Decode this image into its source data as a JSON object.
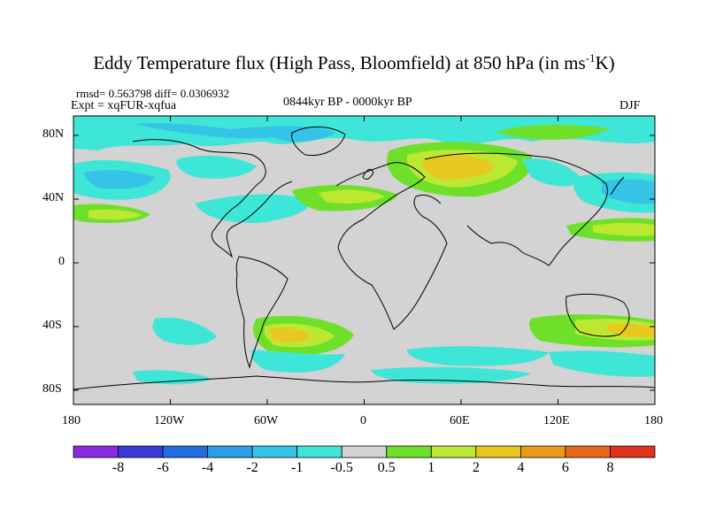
{
  "title": {
    "main": "Eddy Temperature flux (High Pass, Bloomfield) at 850 hPa (in ms",
    "sup": "-1",
    "end": "K)"
  },
  "stats": "rmsd= 0.563798 diff= 0.0306932",
  "expt": "Expt = xqFUR-xqfua",
  "period": "0844kyr BP - 0000kyr BP",
  "season": "DJF",
  "lat_ticks": [
    "80N",
    "40N",
    "0",
    "40S",
    "80S"
  ],
  "lon_ticks": [
    "180",
    "120W",
    "60W",
    "0",
    "60E",
    "120E",
    "180"
  ],
  "colorbar": {
    "labels": [
      "-8",
      "-6",
      "-4",
      "-2",
      "-1",
      "-0.5",
      "0.5",
      "1",
      "2",
      "4",
      "6",
      "8"
    ],
    "colors": [
      "#8a2be2",
      "#3a3ad8",
      "#1f6fe0",
      "#2a9fe8",
      "#35c3e8",
      "#3ee6d8",
      "#d3d3d3",
      "#6ee02a",
      "#bde832",
      "#e8c81e",
      "#e89a18",
      "#e8681a",
      "#e0301e"
    ]
  },
  "map_colors": {
    "background": "#d3d3d3",
    "pos_0_5": "#6ee02a",
    "pos_1": "#bde832",
    "pos_2": "#e8c81e",
    "pos_4": "#e89a18",
    "neg_0_5": "#3ee6d8",
    "neg_1": "#35c3e8",
    "neg_2": "#2a9fe8",
    "neg_4": "#1f6fe0"
  }
}
